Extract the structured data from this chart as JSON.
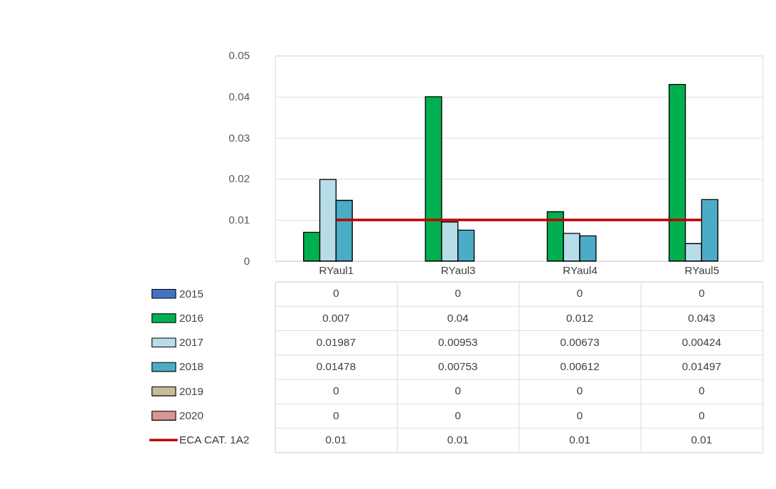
{
  "chart_data": {
    "type": "bar",
    "categories": [
      "RYaul1",
      "RYaul3",
      "RYaul4",
      "RYaul5"
    ],
    "series": [
      {
        "name": "2015",
        "color": "#4472c4",
        "values": [
          0,
          0,
          0,
          0
        ]
      },
      {
        "name": "2016",
        "color": "#00b050",
        "values": [
          0.007,
          0.04,
          0.012,
          0.043
        ]
      },
      {
        "name": "2017",
        "color": "#b7dee8",
        "values": [
          0.01987,
          0.00953,
          0.00673,
          0.00424
        ]
      },
      {
        "name": "2018",
        "color": "#4bacc6",
        "values": [
          0.01478,
          0.00753,
          0.00612,
          0.01497
        ]
      },
      {
        "name": "2019",
        "color": "#c4bd97",
        "values": [
          0,
          0,
          0,
          0
        ]
      },
      {
        "name": "2020",
        "color": "#d99694",
        "values": [
          0,
          0,
          0,
          0
        ]
      },
      {
        "name": "ECA CAT. 1A2",
        "color": "#c00000",
        "type": "line",
        "values": [
          0.01,
          0.01,
          0.01,
          0.01
        ]
      }
    ],
    "ylim": [
      0,
      0.05
    ],
    "yticks": [
      0,
      0.01,
      0.02,
      0.03,
      0.04,
      0.05
    ],
    "grid": "y",
    "legend": "bottom",
    "data_labels": true
  }
}
